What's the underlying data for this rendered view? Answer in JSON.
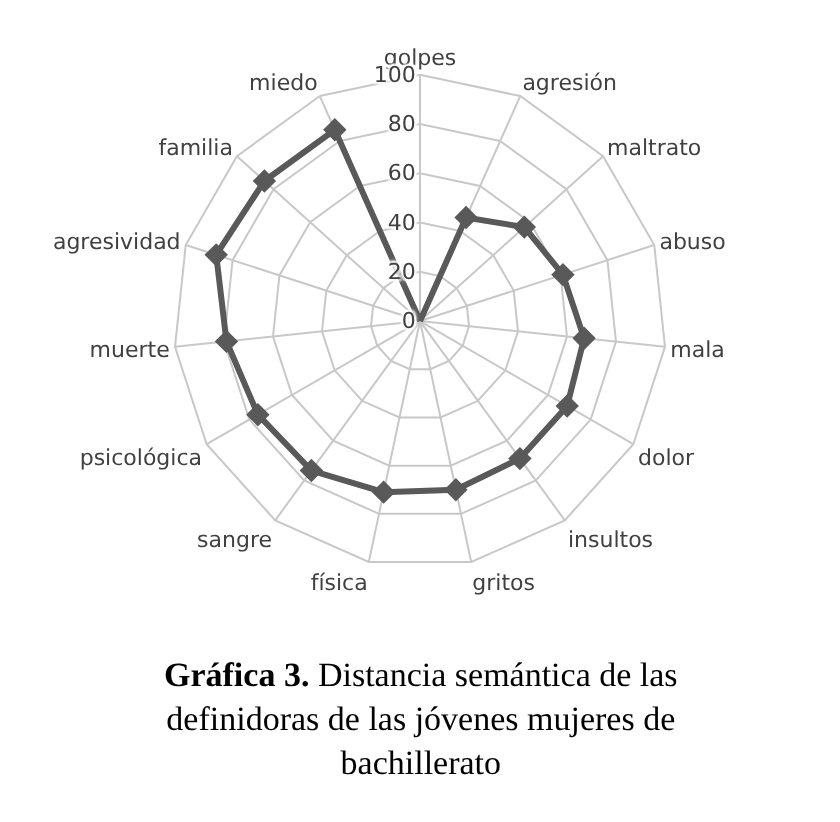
{
  "chart_data": {
    "type": "radar",
    "categories": [
      "golpes",
      "agresión",
      "maltrato",
      "abuso",
      "mala",
      "dolor",
      "insultos",
      "gritos",
      "física",
      "sangre",
      "psicológica",
      "muerte",
      "agresividad",
      "familia",
      "miedo"
    ],
    "series": [
      {
        "color": "#595959",
        "values": [
          0,
          46,
          57,
          61,
          67,
          69,
          69,
          70,
          71,
          75,
          76,
          79,
          87,
          85,
          85
        ]
      }
    ],
    "ylim": [
      0,
      100
    ],
    "yticks": [
      0,
      20,
      40,
      60,
      80,
      100
    ],
    "grid": true,
    "marker": "diamond",
    "line_style": "solid",
    "annotations": [
      "Gráfica 3. Distancia semántica de las definidoras de las jóvenes mujeres de bachillerato"
    ]
  }
}
